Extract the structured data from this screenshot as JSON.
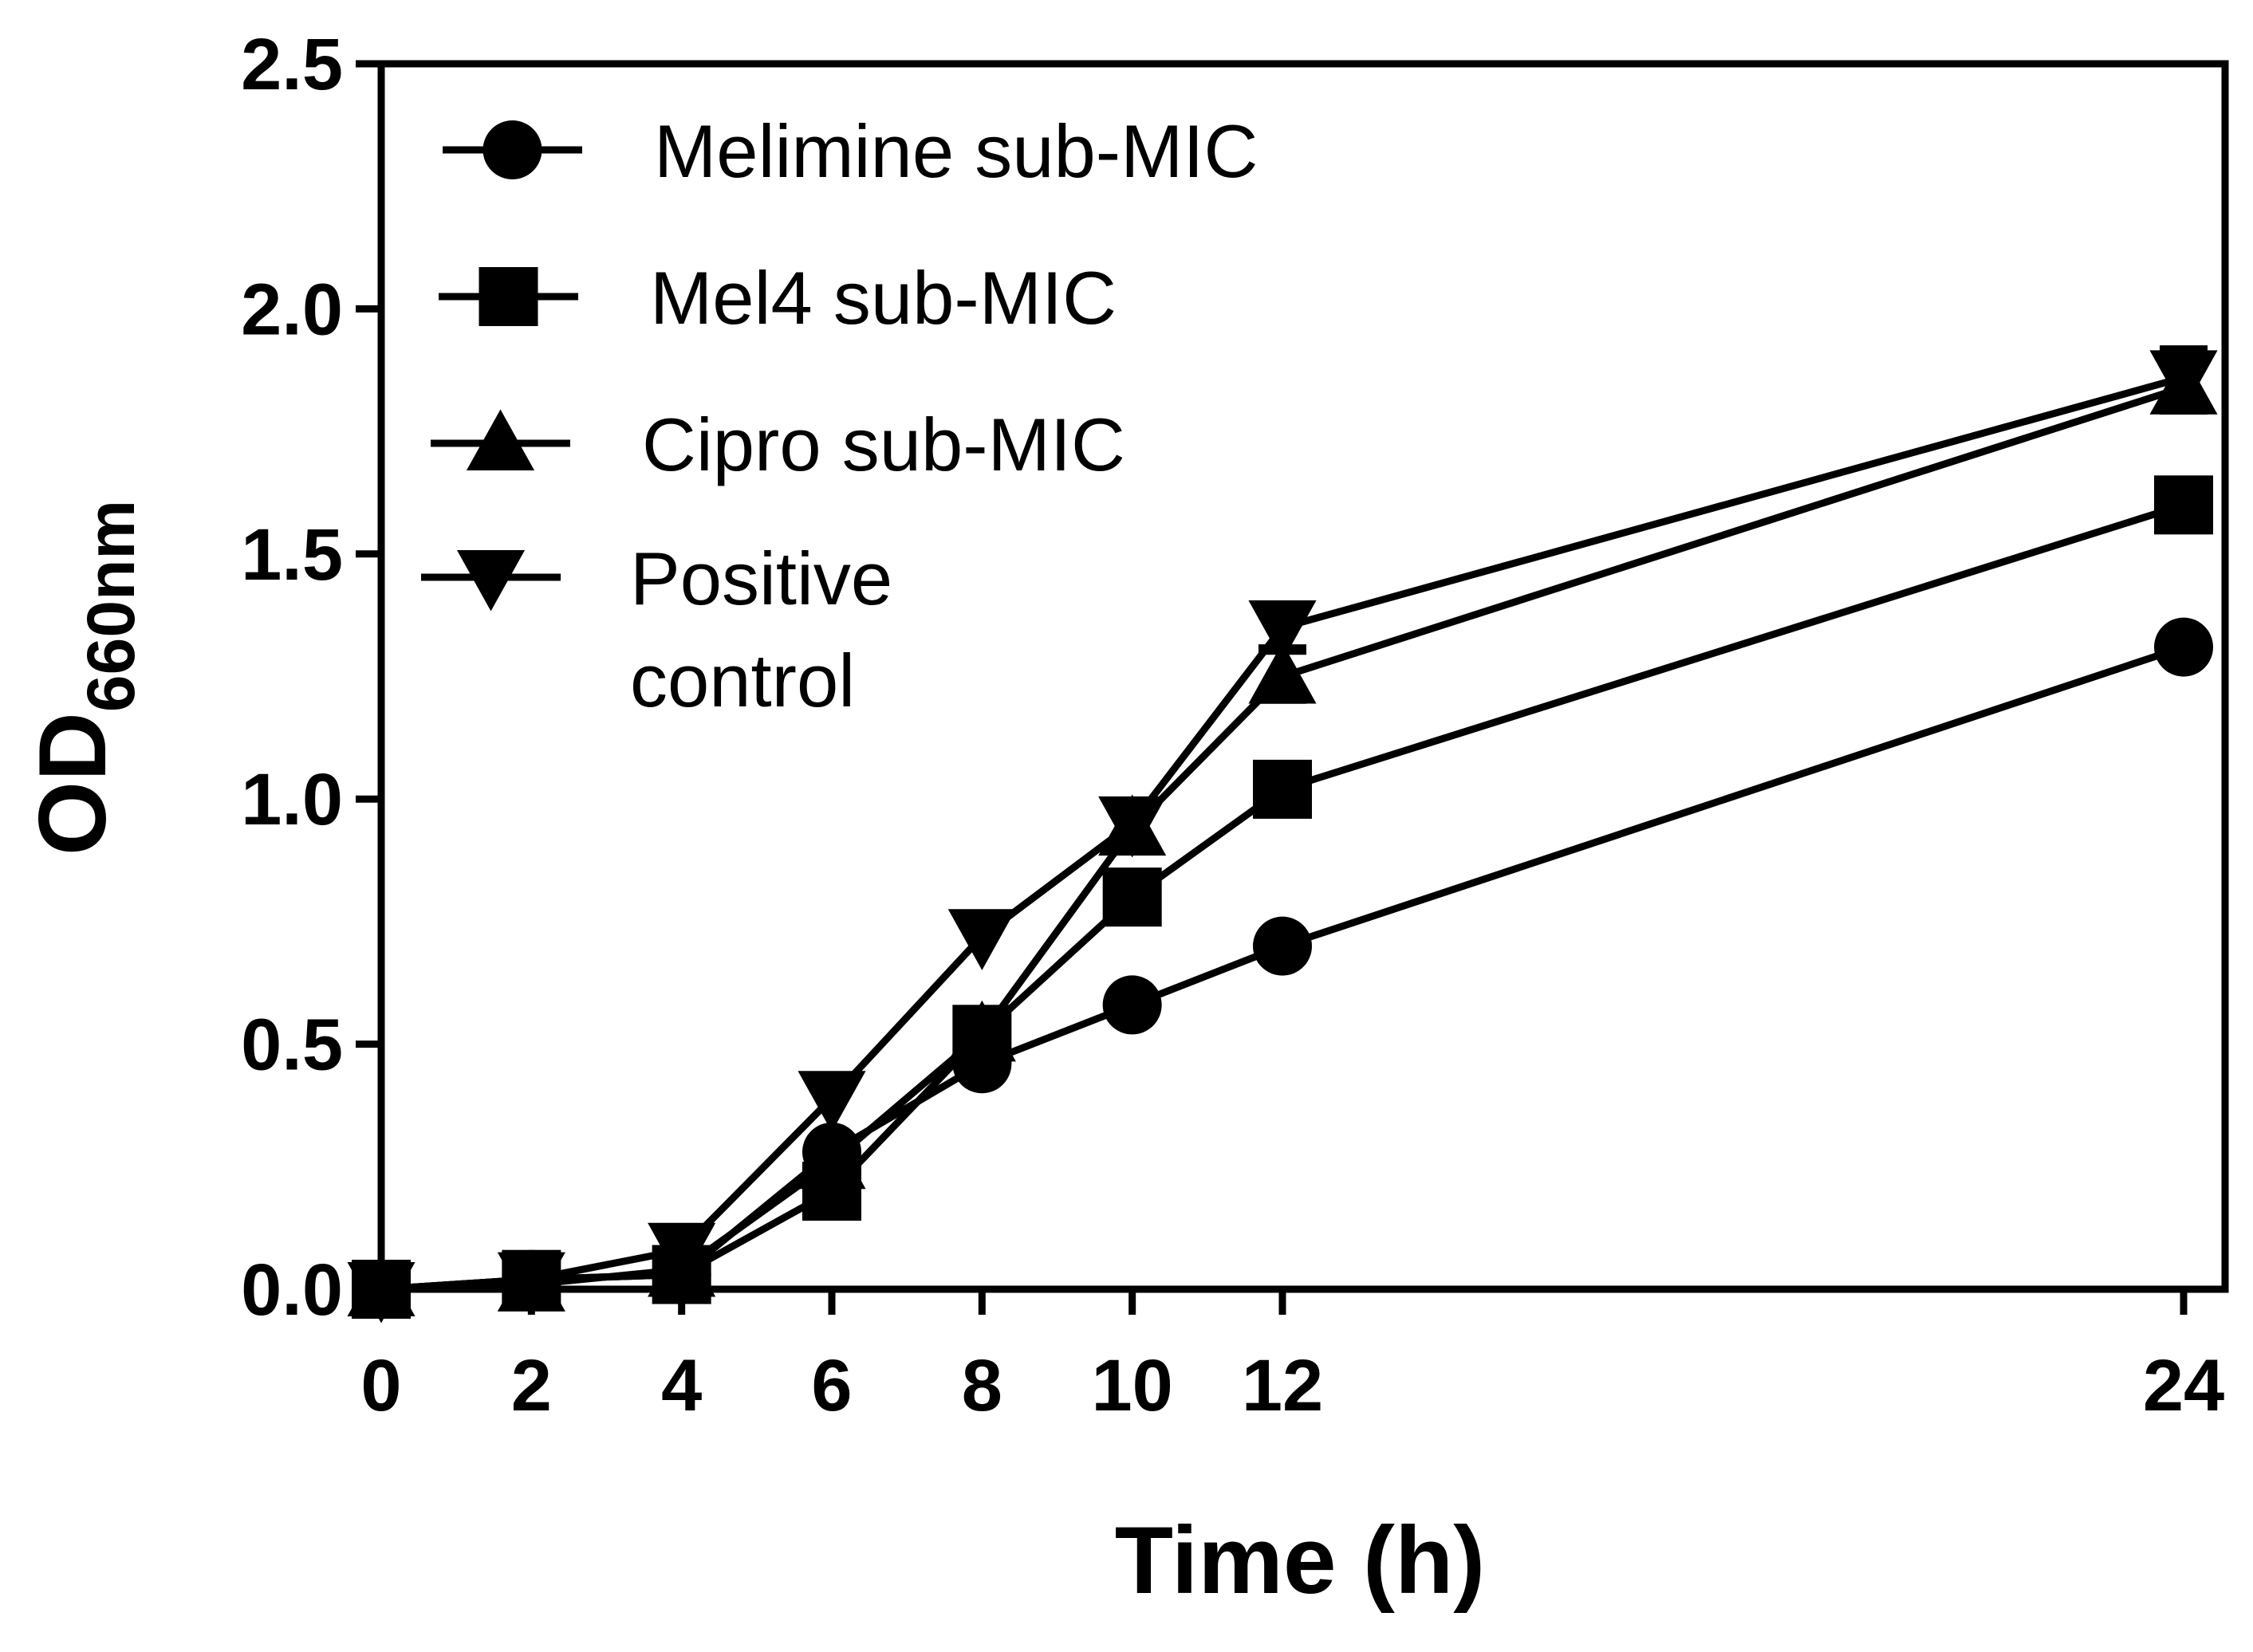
{
  "chart_data": {
    "type": "line",
    "title": "",
    "xlabel": "Time (h)",
    "ylabel": {
      "main": "OD",
      "subscript": "660nm"
    },
    "xlim": [
      0,
      24
    ],
    "ylim": [
      0.0,
      2.5
    ],
    "x_ticks": [
      0,
      2,
      4,
      6,
      8,
      10,
      12,
      24
    ],
    "x_tick_labels": [
      "0",
      "2",
      "4",
      "6",
      "8",
      "10",
      "12",
      "24"
    ],
    "y_ticks": [
      0.0,
      0.5,
      1.0,
      1.5,
      2.0,
      2.5
    ],
    "y_tick_labels": [
      "0.0",
      "0.5",
      "1.0",
      "1.5",
      "2.0",
      "2.5"
    ],
    "grid": false,
    "legend_position": "top-left",
    "x": [
      0,
      2,
      4,
      6,
      8,
      10,
      12,
      24
    ],
    "series": [
      {
        "name": "Melimine sub-MIC",
        "marker": "circle",
        "values": [
          0.0,
          0.02,
          0.03,
          0.28,
          0.46,
          0.58,
          0.7,
          1.31
        ],
        "errors": [
          0,
          0,
          0,
          0,
          0,
          0,
          0,
          0
        ]
      },
      {
        "name": "Mel4 sub-MIC",
        "marker": "square",
        "values": [
          0.0,
          0.02,
          0.03,
          0.2,
          0.52,
          0.8,
          1.02,
          1.6
        ],
        "errors": [
          0,
          0,
          0,
          0,
          0,
          0,
          0,
          0
        ]
      },
      {
        "name": "Cipro sub-MIC",
        "marker": "triangle-up",
        "values": [
          0.0,
          0.01,
          0.04,
          0.26,
          0.52,
          0.94,
          1.25,
          1.84
        ],
        "errors": [
          0,
          0,
          0,
          0,
          0,
          0,
          0.05,
          0.05
        ]
      },
      {
        "name": "Positive control",
        "label_lines": [
          "Positive",
          "control"
        ],
        "marker": "triangle-down",
        "values": [
          0.0,
          0.02,
          0.08,
          0.39,
          0.72,
          0.95,
          1.35,
          1.86
        ],
        "errors": [
          0,
          0,
          0,
          0,
          0,
          0,
          0.04,
          0.06
        ]
      }
    ]
  }
}
